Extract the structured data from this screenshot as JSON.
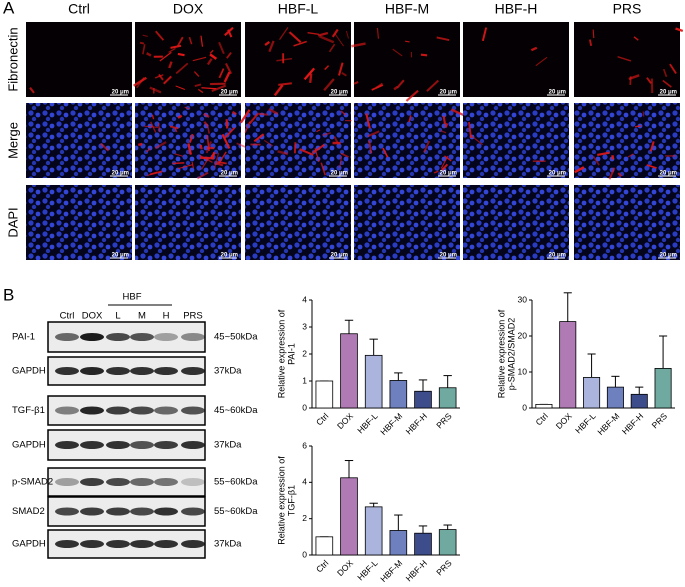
{
  "panel_a": {
    "label": "A",
    "columns": [
      "Ctrl",
      "DOX",
      "HBF-L",
      "HBF-M",
      "HBF-H",
      "PRS"
    ],
    "rows": [
      "Fibronectin",
      "Merge",
      "DAPI"
    ],
    "scale_bar": "20 μm"
  },
  "panel_b": {
    "label": "B",
    "lanes": [
      "Ctrl",
      "DOX",
      "L",
      "M",
      "H",
      "PRS"
    ],
    "group": "HBF",
    "blots": [
      {
        "name": "PAI-1",
        "size": "45~50kDa"
      },
      {
        "name": "GAPDH",
        "size": "37kDa"
      },
      {
        "name": "TGF-β1",
        "size": "45~60kDa"
      },
      {
        "name": "GAPDH",
        "size": "37kDa"
      },
      {
        "name": "p-SMAD2",
        "size": "55~60kDa"
      },
      {
        "name": "SMAD2",
        "size": "55~60kDa"
      },
      {
        "name": "GAPDH",
        "size": "37kDa"
      }
    ]
  },
  "chart_data": [
    {
      "type": "bar",
      "ylabel": [
        "Relative expression of",
        "PAI-1"
      ],
      "categories": [
        "Ctrl",
        "DOX",
        "HBF-L",
        "HBF-M",
        "HBF-H",
        "PRS"
      ],
      "values": [
        1,
        2.75,
        1.95,
        1.02,
        0.62,
        0.75
      ],
      "errors": [
        0,
        0.5,
        0.6,
        0.28,
        0.42,
        0.45
      ],
      "colors": [
        "#ffffff",
        "#b07ab4",
        "#aab4dc",
        "#6f80bf",
        "#3d4d8c",
        "#6fa9a0"
      ],
      "ylim": [
        0,
        4
      ],
      "yticks": [
        0,
        1,
        2,
        3,
        4
      ]
    },
    {
      "type": "bar",
      "ylabel": [
        "Relative expression of",
        "p-SMAD2/SMAD2"
      ],
      "categories": [
        "Ctrl",
        "DOX",
        "HBF-L",
        "HBF-M",
        "HBF-H",
        "PRS"
      ],
      "values": [
        1,
        24,
        8.5,
        5.8,
        3.8,
        11
      ],
      "errors": [
        0,
        8,
        6.5,
        3,
        2,
        9
      ],
      "colors": [
        "#ffffff",
        "#b07ab4",
        "#aab4dc",
        "#6f80bf",
        "#3d4d8c",
        "#6fa9a0"
      ],
      "ylim": [
        0,
        30
      ],
      "yticks": [
        0,
        10,
        20,
        30
      ]
    },
    {
      "type": "bar",
      "ylabel": [
        "Relative expression of",
        "TGF-β1"
      ],
      "categories": [
        "Ctrl",
        "DOX",
        "HBF-L",
        "HBF-M",
        "HBF-H",
        "PRS"
      ],
      "values": [
        1,
        4.25,
        2.65,
        1.35,
        1.2,
        1.4
      ],
      "errors": [
        0,
        0.95,
        0.2,
        0.85,
        0.4,
        0.25
      ],
      "colors": [
        "#ffffff",
        "#b07ab4",
        "#aab4dc",
        "#6f80bf",
        "#3d4d8c",
        "#6fa9a0"
      ],
      "ylim": [
        0,
        6
      ],
      "yticks": [
        0,
        2,
        4,
        6
      ]
    }
  ]
}
